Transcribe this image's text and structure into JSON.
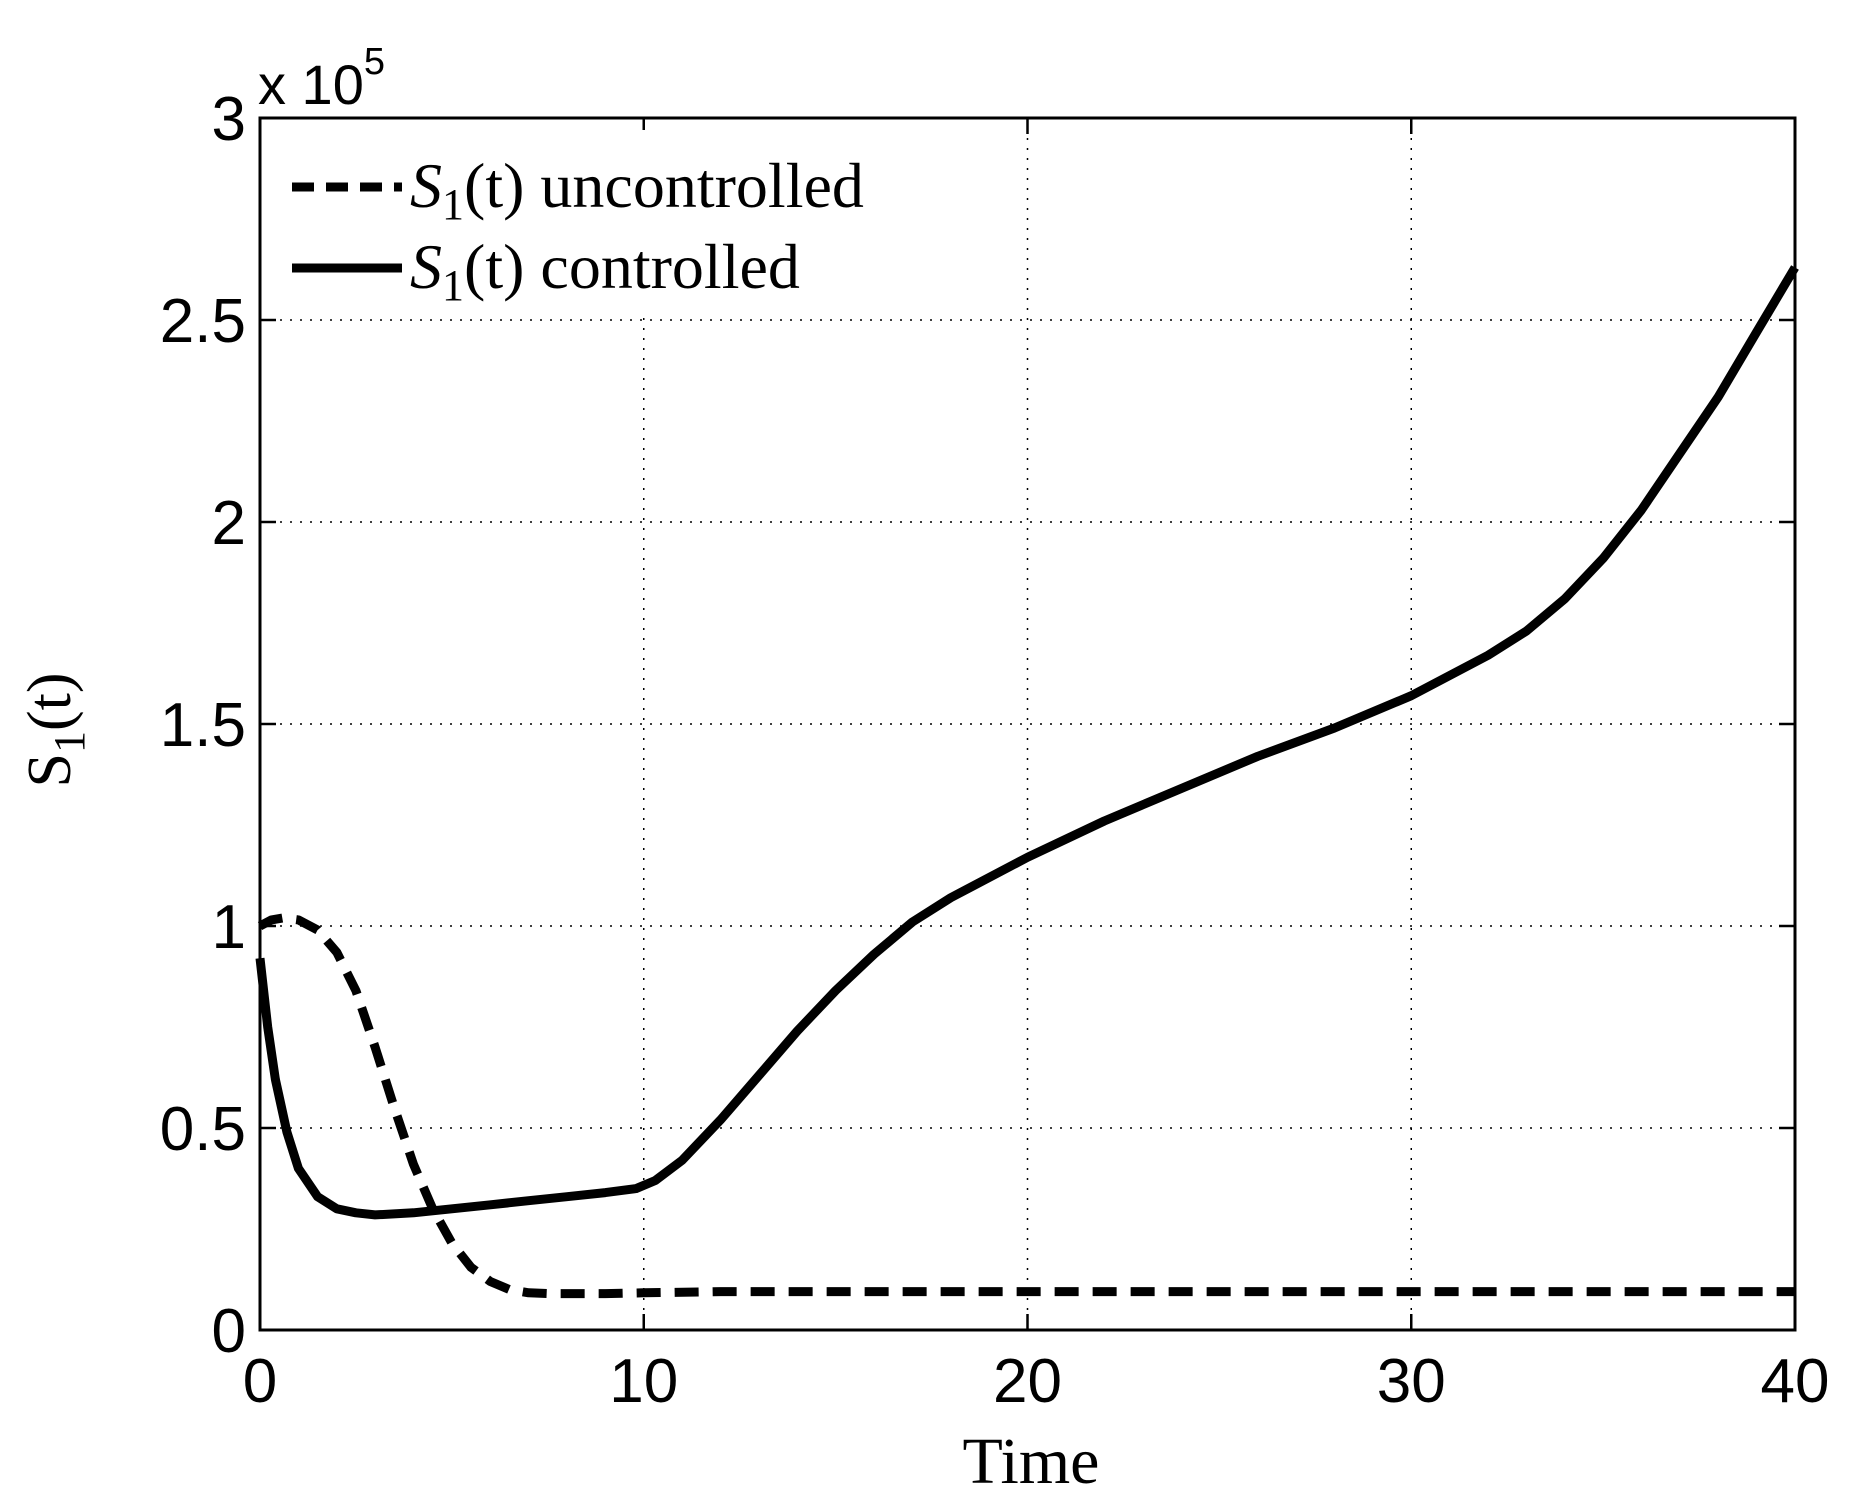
{
  "chart_data": {
    "type": "line",
    "title": "",
    "xlabel": "Time",
    "ylabel": {
      "base": "S",
      "sub": "1",
      "rest": "(t)"
    },
    "y_scale_label": {
      "prefix": "x 10",
      "exponent": "5"
    },
    "xlim": [
      0,
      40
    ],
    "ylim": [
      0,
      3
    ],
    "x_ticks": [
      0,
      10,
      20,
      30,
      40
    ],
    "y_ticks": [
      0,
      0.5,
      1,
      1.5,
      2,
      2.5,
      3
    ],
    "x_tick_labels": [
      "0",
      "10",
      "20",
      "30",
      "40"
    ],
    "y_tick_labels": [
      "0",
      "0.5",
      "1",
      "1.5",
      "2",
      "2.5",
      "3"
    ],
    "grid": true,
    "legend_position": "top-left",
    "series": [
      {
        "name": "S1(t) uncontrolled",
        "legend_label": {
          "base": "S",
          "sub": "1",
          "rest": "(t) uncontrolled"
        },
        "line_style": "dashed",
        "color": "#000000",
        "x": [
          0,
          0.3,
          0.6,
          1,
          1.5,
          2,
          2.5,
          3,
          3.5,
          4,
          4.5,
          5,
          5.5,
          6,
          6.5,
          7,
          7.5,
          8,
          9,
          10,
          12,
          15,
          20,
          25,
          30,
          35,
          40
        ],
        "y": [
          1.0,
          1.015,
          1.02,
          1.015,
          0.99,
          0.935,
          0.84,
          0.7,
          0.55,
          0.41,
          0.3,
          0.215,
          0.155,
          0.12,
          0.1,
          0.092,
          0.09,
          0.09,
          0.09,
          0.092,
          0.095,
          0.095,
          0.095,
          0.095,
          0.095,
          0.095,
          0.095
        ]
      },
      {
        "name": "S1(t) controlled",
        "legend_label": {
          "base": "S",
          "sub": "1",
          "rest": "(t) controlled"
        },
        "line_style": "solid",
        "color": "#000000",
        "x": [
          0,
          0.2,
          0.4,
          0.7,
          1,
          1.5,
          2,
          2.5,
          3,
          4,
          5,
          6,
          7,
          8,
          9,
          9.8,
          10.3,
          11,
          12,
          13,
          14,
          15,
          16,
          17,
          18,
          20,
          22,
          24,
          26,
          28,
          30,
          32,
          33,
          34,
          35,
          36,
          37,
          38,
          39,
          40
        ],
        "y": [
          0.92,
          0.75,
          0.62,
          0.49,
          0.4,
          0.33,
          0.3,
          0.29,
          0.285,
          0.29,
          0.3,
          0.31,
          0.32,
          0.33,
          0.34,
          0.35,
          0.37,
          0.42,
          0.52,
          0.63,
          0.74,
          0.84,
          0.93,
          1.01,
          1.07,
          1.17,
          1.26,
          1.34,
          1.42,
          1.49,
          1.57,
          1.67,
          1.73,
          1.81,
          1.91,
          2.03,
          2.17,
          2.31,
          2.47,
          2.63
        ]
      }
    ]
  }
}
